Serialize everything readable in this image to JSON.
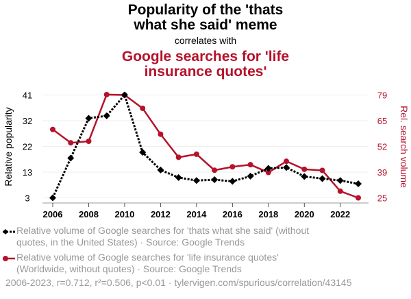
{
  "title": "Popularity of the 'thats what she said' meme",
  "title_line1": "Popularity of the 'thats",
  "title_line2": "what she said' meme",
  "correlates": "correlates with",
  "subtitle_line1": "Google searches for 'life",
  "subtitle_line2": "insurance quotes'",
  "legend": [
    {
      "line1": "Relative volume of Google searches for 'thats what she said' (without",
      "line2": "quotes, in the United States) · Source: Google Trends"
    },
    {
      "line1": "Relative volume of Google searches for 'life insurance quotes'",
      "line2": "(Worldwide, without quotes) · Source: Google Trends"
    }
  ],
  "footer": "2006-2023, r=0.712, r²=0.506, p<0.01 · tylervigen.com/spurious/correlation/43145",
  "colors": {
    "series1": "#000000",
    "series2": "#b5132b",
    "grid": "#eeeeee",
    "legend_text": "#999999"
  },
  "chart_data": {
    "type": "line",
    "x": [
      2006,
      2007,
      2008,
      2009,
      2010,
      2011,
      2012,
      2013,
      2014,
      2015,
      2016,
      2017,
      2018,
      2019,
      2020,
      2021,
      2022,
      2023
    ],
    "x_ticks": [
      "2006",
      "2008",
      "2010",
      "2012",
      "2014",
      "2016",
      "2018",
      "2020",
      "2022"
    ],
    "ylabel": "Relative popularity",
    "y2label": "Rel. search volume",
    "y_ticks": [
      "3",
      "13",
      "22",
      "32",
      "41"
    ],
    "y2_ticks": [
      "25",
      "39",
      "52",
      "65",
      "79"
    ],
    "ylim": [
      3,
      41
    ],
    "y2lim": [
      25,
      79
    ],
    "grid": true,
    "legend_placement": "bottom",
    "series": [
      {
        "axis": "left",
        "style": "dotted-diamond",
        "values": [
          3,
          17.7,
          32.4,
          33.3,
          41,
          19.8,
          13.3,
          10.5,
          9.4,
          9.7,
          9.1,
          11,
          13.9,
          14.2,
          10.9,
          10.1,
          9.4,
          8.2
        ]
      },
      {
        "axis": "right",
        "style": "solid-circle",
        "values": [
          60.9,
          53.9,
          54.7,
          79.2,
          79,
          72,
          58.4,
          46.3,
          47.9,
          39.5,
          41.3,
          42.4,
          38.3,
          44.2,
          40,
          39.4,
          28.5,
          25
        ]
      }
    ]
  }
}
